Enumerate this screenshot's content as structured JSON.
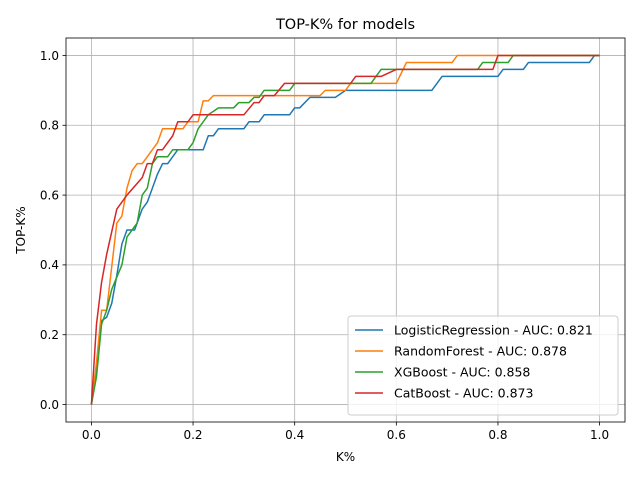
{
  "chart_data": {
    "type": "line",
    "title": "TOP-K% for models",
    "xlabel": "K%",
    "ylabel": "TOP-K%",
    "xlim": [
      -0.05,
      1.05
    ],
    "ylim": [
      -0.05,
      1.05
    ],
    "xticks": [
      0.0,
      0.2,
      0.4,
      0.6,
      0.8,
      1.0
    ],
    "yticks": [
      0.0,
      0.2,
      0.4,
      0.6,
      0.8,
      1.0
    ],
    "xtick_labels": [
      "0.0",
      "0.2",
      "0.4",
      "0.6",
      "0.8",
      "1.0"
    ],
    "ytick_labels": [
      "0.0",
      "0.2",
      "0.4",
      "0.6",
      "0.8",
      "1.0"
    ],
    "grid": true,
    "legend_position": "lower-right",
    "series": [
      {
        "name": "LogisticRegression - AUC: 0.821",
        "color": "#1f77b4",
        "points": [
          [
            0.0,
            0.0
          ],
          [
            0.01,
            0.1
          ],
          [
            0.02,
            0.24
          ],
          [
            0.03,
            0.25
          ],
          [
            0.04,
            0.29
          ],
          [
            0.05,
            0.37
          ],
          [
            0.06,
            0.46
          ],
          [
            0.07,
            0.5
          ],
          [
            0.085,
            0.5
          ],
          [
            0.1,
            0.56
          ],
          [
            0.11,
            0.58
          ],
          [
            0.12,
            0.62
          ],
          [
            0.13,
            0.66
          ],
          [
            0.14,
            0.69
          ],
          [
            0.15,
            0.69
          ],
          [
            0.17,
            0.73
          ],
          [
            0.2,
            0.73
          ],
          [
            0.22,
            0.73
          ],
          [
            0.23,
            0.77
          ],
          [
            0.24,
            0.77
          ],
          [
            0.25,
            0.79
          ],
          [
            0.3,
            0.79
          ],
          [
            0.31,
            0.81
          ],
          [
            0.33,
            0.81
          ],
          [
            0.34,
            0.83
          ],
          [
            0.39,
            0.83
          ],
          [
            0.4,
            0.85
          ],
          [
            0.41,
            0.85
          ],
          [
            0.43,
            0.88
          ],
          [
            0.48,
            0.88
          ],
          [
            0.5,
            0.9
          ],
          [
            0.67,
            0.9
          ],
          [
            0.69,
            0.94
          ],
          [
            0.8,
            0.94
          ],
          [
            0.81,
            0.96
          ],
          [
            0.85,
            0.96
          ],
          [
            0.86,
            0.98
          ],
          [
            0.98,
            0.98
          ],
          [
            0.99,
            1.0
          ],
          [
            1.0,
            1.0
          ]
        ]
      },
      {
        "name": "RandomForest - AUC: 0.878",
        "color": "#ff7f0e",
        "points": [
          [
            0.0,
            0.0
          ],
          [
            0.01,
            0.12
          ],
          [
            0.02,
            0.27
          ],
          [
            0.03,
            0.27
          ],
          [
            0.05,
            0.52
          ],
          [
            0.06,
            0.54
          ],
          [
            0.07,
            0.62
          ],
          [
            0.08,
            0.67
          ],
          [
            0.09,
            0.69
          ],
          [
            0.1,
            0.69
          ],
          [
            0.13,
            0.75
          ],
          [
            0.14,
            0.79
          ],
          [
            0.18,
            0.79
          ],
          [
            0.19,
            0.81
          ],
          [
            0.21,
            0.81
          ],
          [
            0.22,
            0.87
          ],
          [
            0.23,
            0.87
          ],
          [
            0.24,
            0.885
          ],
          [
            0.45,
            0.885
          ],
          [
            0.46,
            0.9
          ],
          [
            0.5,
            0.9
          ],
          [
            0.51,
            0.92
          ],
          [
            0.6,
            0.92
          ],
          [
            0.62,
            0.98
          ],
          [
            0.71,
            0.98
          ],
          [
            0.72,
            1.0
          ],
          [
            1.0,
            1.0
          ]
        ]
      },
      {
        "name": "XGBoost - AUC: 0.858",
        "color": "#2ca02c",
        "points": [
          [
            0.0,
            0.0
          ],
          [
            0.01,
            0.08
          ],
          [
            0.02,
            0.23
          ],
          [
            0.03,
            0.27
          ],
          [
            0.04,
            0.33
          ],
          [
            0.06,
            0.4
          ],
          [
            0.07,
            0.48
          ],
          [
            0.08,
            0.5
          ],
          [
            0.09,
            0.52
          ],
          [
            0.1,
            0.6
          ],
          [
            0.11,
            0.62
          ],
          [
            0.12,
            0.69
          ],
          [
            0.13,
            0.71
          ],
          [
            0.15,
            0.71
          ],
          [
            0.16,
            0.73
          ],
          [
            0.19,
            0.73
          ],
          [
            0.2,
            0.75
          ],
          [
            0.21,
            0.79
          ],
          [
            0.23,
            0.83
          ],
          [
            0.25,
            0.85
          ],
          [
            0.28,
            0.85
          ],
          [
            0.29,
            0.865
          ],
          [
            0.31,
            0.865
          ],
          [
            0.32,
            0.88
          ],
          [
            0.33,
            0.88
          ],
          [
            0.34,
            0.9
          ],
          [
            0.39,
            0.9
          ],
          [
            0.4,
            0.92
          ],
          [
            0.55,
            0.92
          ],
          [
            0.57,
            0.96
          ],
          [
            0.76,
            0.96
          ],
          [
            0.77,
            0.98
          ],
          [
            0.82,
            0.98
          ],
          [
            0.83,
            1.0
          ],
          [
            1.0,
            1.0
          ]
        ]
      },
      {
        "name": "CatBoost - AUC: 0.873",
        "color": "#d62728",
        "points": [
          [
            0.0,
            0.0
          ],
          [
            0.01,
            0.23
          ],
          [
            0.02,
            0.35
          ],
          [
            0.03,
            0.43
          ],
          [
            0.05,
            0.56
          ],
          [
            0.07,
            0.6
          ],
          [
            0.1,
            0.65
          ],
          [
            0.11,
            0.69
          ],
          [
            0.12,
            0.69
          ],
          [
            0.13,
            0.73
          ],
          [
            0.14,
            0.73
          ],
          [
            0.16,
            0.77
          ],
          [
            0.17,
            0.81
          ],
          [
            0.19,
            0.81
          ],
          [
            0.2,
            0.83
          ],
          [
            0.3,
            0.83
          ],
          [
            0.32,
            0.865
          ],
          [
            0.33,
            0.865
          ],
          [
            0.34,
            0.885
          ],
          [
            0.36,
            0.885
          ],
          [
            0.38,
            0.92
          ],
          [
            0.51,
            0.92
          ],
          [
            0.52,
            0.94
          ],
          [
            0.56,
            0.94
          ],
          [
            0.57,
            0.94
          ],
          [
            0.6,
            0.96
          ],
          [
            0.79,
            0.96
          ],
          [
            0.8,
            1.0
          ],
          [
            1.0,
            1.0
          ]
        ]
      }
    ]
  }
}
